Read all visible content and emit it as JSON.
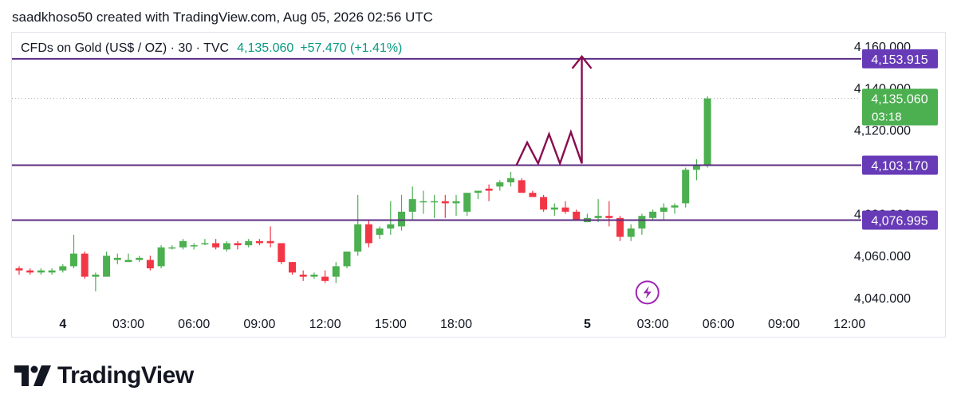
{
  "header": {
    "credit": "saadkhoso50 created with TradingView.com, Aug 05, 2026 02:56 UTC"
  },
  "legend": {
    "symbol": "CFDs on Gold (US$ / OZ) · 30 · TVC",
    "last": "4,135.060",
    "change": "+57.470 (+1.41%)"
  },
  "brand": {
    "name": "TradingView",
    "logo_icon": "tradingview-logo-icon"
  },
  "colors": {
    "up": "#4caf50",
    "down": "#f23645",
    "level_line": "#5b2c83",
    "level_label_bg": "#673ab7",
    "last_price_bg": "#4caf50",
    "drawing": "#880e4f",
    "flash_icon": "#9c27b0",
    "grid": "#e0e3eb",
    "axis_text": "#131722"
  },
  "chart_data": {
    "type": "candlestick",
    "interval_minutes": 30,
    "ylim": [
      4032,
      4166
    ],
    "y_ticks": [
      {
        "value": 4040,
        "label": "4,040.000"
      },
      {
        "value": 4060,
        "label": "4,060.000"
      },
      {
        "value": 4080,
        "label": "4,080.000"
      },
      {
        "value": 4120,
        "label": "4,120.000"
      },
      {
        "value": 4140,
        "label": "4,140.000"
      },
      {
        "value": 4160,
        "label": "4,160.000"
      }
    ],
    "x_ticks": [
      {
        "bar": 4,
        "label": "4"
      },
      {
        "bar": 10,
        "label": "03:00"
      },
      {
        "bar": 16,
        "label": "06:00"
      },
      {
        "bar": 22,
        "label": "09:00"
      },
      {
        "bar": 28,
        "label": "12:00"
      },
      {
        "bar": 34,
        "label": "15:00"
      },
      {
        "bar": 40,
        "label": "18:00"
      },
      {
        "bar": 52,
        "label": "5"
      },
      {
        "bar": 58,
        "label": "03:00"
      },
      {
        "bar": 64,
        "label": "06:00"
      },
      {
        "bar": 70,
        "label": "09:00"
      },
      {
        "bar": 76,
        "label": "12:00"
      }
    ],
    "bars": [
      [
        4054,
        4055,
        4051,
        4053
      ],
      [
        4053,
        4054,
        4051,
        4052
      ],
      [
        4052,
        4054,
        4051,
        4053
      ],
      [
        4052,
        4054,
        4051,
        4053
      ],
      [
        4053,
        4056,
        4052,
        4055
      ],
      [
        4055,
        4070,
        4054,
        4061
      ],
      [
        4061,
        4062,
        4049,
        4050
      ],
      [
        4050,
        4052,
        4043,
        4051
      ],
      [
        4050,
        4062,
        4050,
        4060
      ],
      [
        4058,
        4061,
        4056,
        4059
      ],
      [
        4057,
        4061,
        4057,
        4058
      ],
      [
        4058,
        4060,
        4057,
        4059
      ],
      [
        4058,
        4060,
        4053,
        4054
      ],
      [
        4055,
        4065,
        4054,
        4064
      ],
      [
        4064,
        4065,
        4063,
        4064
      ],
      [
        4064,
        4068,
        4063,
        4067
      ],
      [
        4065,
        4066,
        4063,
        4065
      ],
      [
        4066,
        4068,
        4065,
        4066
      ],
      [
        4066,
        4068,
        4063,
        4064
      ],
      [
        4063,
        4067,
        4062,
        4066
      ],
      [
        4066,
        4067,
        4063,
        4065
      ],
      [
        4065,
        4068,
        4064,
        4067
      ],
      [
        4067,
        4068,
        4065,
        4066
      ],
      [
        4067,
        4074,
        4064,
        4066
      ],
      [
        4066,
        4066,
        4056,
        4057
      ],
      [
        4057,
        4057,
        4051,
        4052
      ],
      [
        4051,
        4053,
        4048,
        4050
      ],
      [
        4050,
        4052,
        4049,
        4051
      ],
      [
        4050,
        4053,
        4047,
        4048
      ],
      [
        4050,
        4057,
        4047,
        4055
      ],
      [
        4055,
        4062,
        4054,
        4062
      ],
      [
        4062,
        4089,
        4060,
        4075
      ],
      [
        4075,
        4077,
        4064,
        4066
      ],
      [
        4070,
        4074,
        4068,
        4073
      ],
      [
        4073,
        4086,
        4070,
        4075
      ],
      [
        4074,
        4089,
        4072,
        4081
      ],
      [
        4081,
        4093,
        4077,
        4087
      ],
      [
        4086,
        4091,
        4080,
        4086
      ],
      [
        4086,
        4089,
        4078,
        4086
      ],
      [
        4086,
        4089,
        4078,
        4085
      ],
      [
        4085,
        4089,
        4079,
        4086
      ],
      [
        4081,
        4090,
        4079,
        4090
      ],
      [
        4090,
        4091,
        4087,
        4091
      ],
      [
        4092,
        4094,
        4086,
        4091
      ],
      [
        4093,
        4096,
        4091,
        4095
      ],
      [
        4095,
        4100,
        4093,
        4097
      ],
      [
        4096,
        4097,
        4092,
        4090
      ],
      [
        4090,
        4091,
        4088,
        4088
      ],
      [
        4088,
        4089,
        4081,
        4082
      ],
      [
        4082,
        4085,
        4079,
        4083
      ],
      [
        4083,
        4086,
        4080,
        4081
      ],
      [
        4081,
        4082,
        4078,
        4077
      ],
      [
        4076,
        4080,
        4076,
        4078
      ],
      [
        4078,
        4087,
        4076,
        4079
      ],
      [
        4079,
        4086,
        4074,
        4078
      ],
      [
        4078,
        4079,
        4067,
        4069
      ],
      [
        4069,
        4075,
        4067,
        4073
      ],
      [
        4073,
        4080,
        4070,
        4079
      ],
      [
        4078,
        4082,
        4077,
        4081
      ],
      [
        4081,
        4085,
        4077,
        4083
      ],
      [
        4083,
        4085,
        4080,
        4084
      ],
      [
        4085,
        4102,
        4083,
        4101
      ],
      [
        4101,
        4106,
        4096,
        4103
      ],
      [
        4103,
        4136,
        4102,
        4135
      ]
    ],
    "levels": [
      {
        "price": 4153.915,
        "label": "4,153.915"
      },
      {
        "price": 4103.17,
        "label": "4,103.170"
      },
      {
        "price": 4076.995,
        "label": "4,076.995"
      }
    ],
    "last_price": {
      "price": 4135.06,
      "label": "4,135.060",
      "countdown": "03:18"
    },
    "zigzag_arrow": [
      {
        "bar": 45.5,
        "price": 4103
      },
      {
        "bar": 46.5,
        "price": 4114
      },
      {
        "bar": 47.5,
        "price": 4104
      },
      {
        "bar": 48.5,
        "price": 4118
      },
      {
        "bar": 49.5,
        "price": 4104
      },
      {
        "bar": 50.5,
        "price": 4119
      },
      {
        "bar": 51.5,
        "price": 4104
      },
      {
        "bar": 51.5,
        "price": 4155
      }
    ],
    "flash_marker": {
      "bar": 57.5,
      "price": 4042.5,
      "icon": "lightning-icon"
    }
  }
}
